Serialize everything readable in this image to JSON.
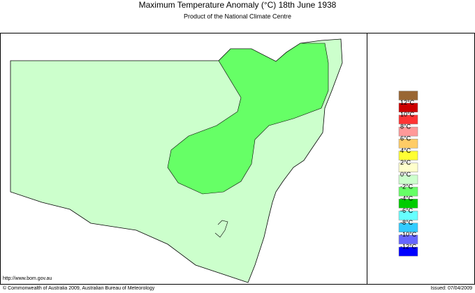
{
  "header": {
    "title": "Maximum Temperature Anomaly (°C)  18th June 1938",
    "subtitle": "Product of the National Climate Centre"
  },
  "legend": {
    "colors": [
      "#996633",
      "#cc0000",
      "#ff3333",
      "#ff9999",
      "#ffcc66",
      "#ffff33",
      "#ffffcc",
      "#ccffcc",
      "#66ff66",
      "#00cc00",
      "#66ffff",
      "#33ccff",
      "#6666ff",
      "#0000ff"
    ],
    "labels": [
      "12°C",
      "10°C",
      "8°C",
      "6°C",
      "4°C",
      "2°C",
      "0°C",
      "-2°C",
      "-4°C",
      "-6°C",
      "-8°C",
      "-10°C",
      "-12°C"
    ]
  },
  "footer": {
    "url": "http://www.bom.gov.au",
    "copyright": "© Commonwealth of Australia 2009, Australian Bureau of Meteorology",
    "issued": "Issued: 07/04/2009"
  }
}
